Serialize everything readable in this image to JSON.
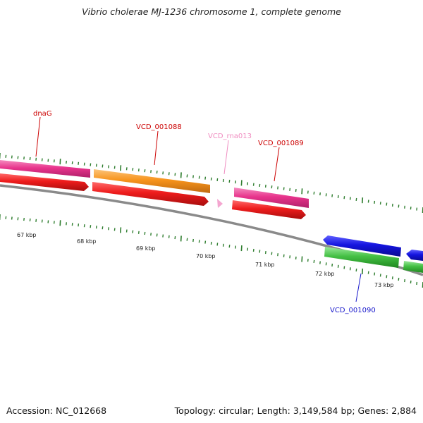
{
  "title": "Vibrio cholerae MJ-1236 chromosome 1, complete genome",
  "footer": {
    "accession": "Accession: NC_012668",
    "summary": "Topology: circular; Length: 3,149,584 bp; Genes: 2,884"
  },
  "colors": {
    "backbone": "#808080",
    "tick": "#2e7d2e",
    "magenta": "#e8348c",
    "orange": "#f7941d",
    "red": "#ee1c1c",
    "pink": "#f4a6d0",
    "blue": "#1414e0",
    "green": "#44c044",
    "label_red": "#cc0000",
    "label_pink": "#f08cc0",
    "label_blue": "#1a1acc"
  },
  "kbp_labels": [
    "67 kbp",
    "68 kbp",
    "69 kbp",
    "70 kbp",
    "71 kbp",
    "72 kbp",
    "73 kbp"
  ],
  "gene_labels": [
    "dnaG",
    "VCD_001088",
    "VCD_rna013",
    "VCD_001089",
    "VCD_001090"
  ]
}
